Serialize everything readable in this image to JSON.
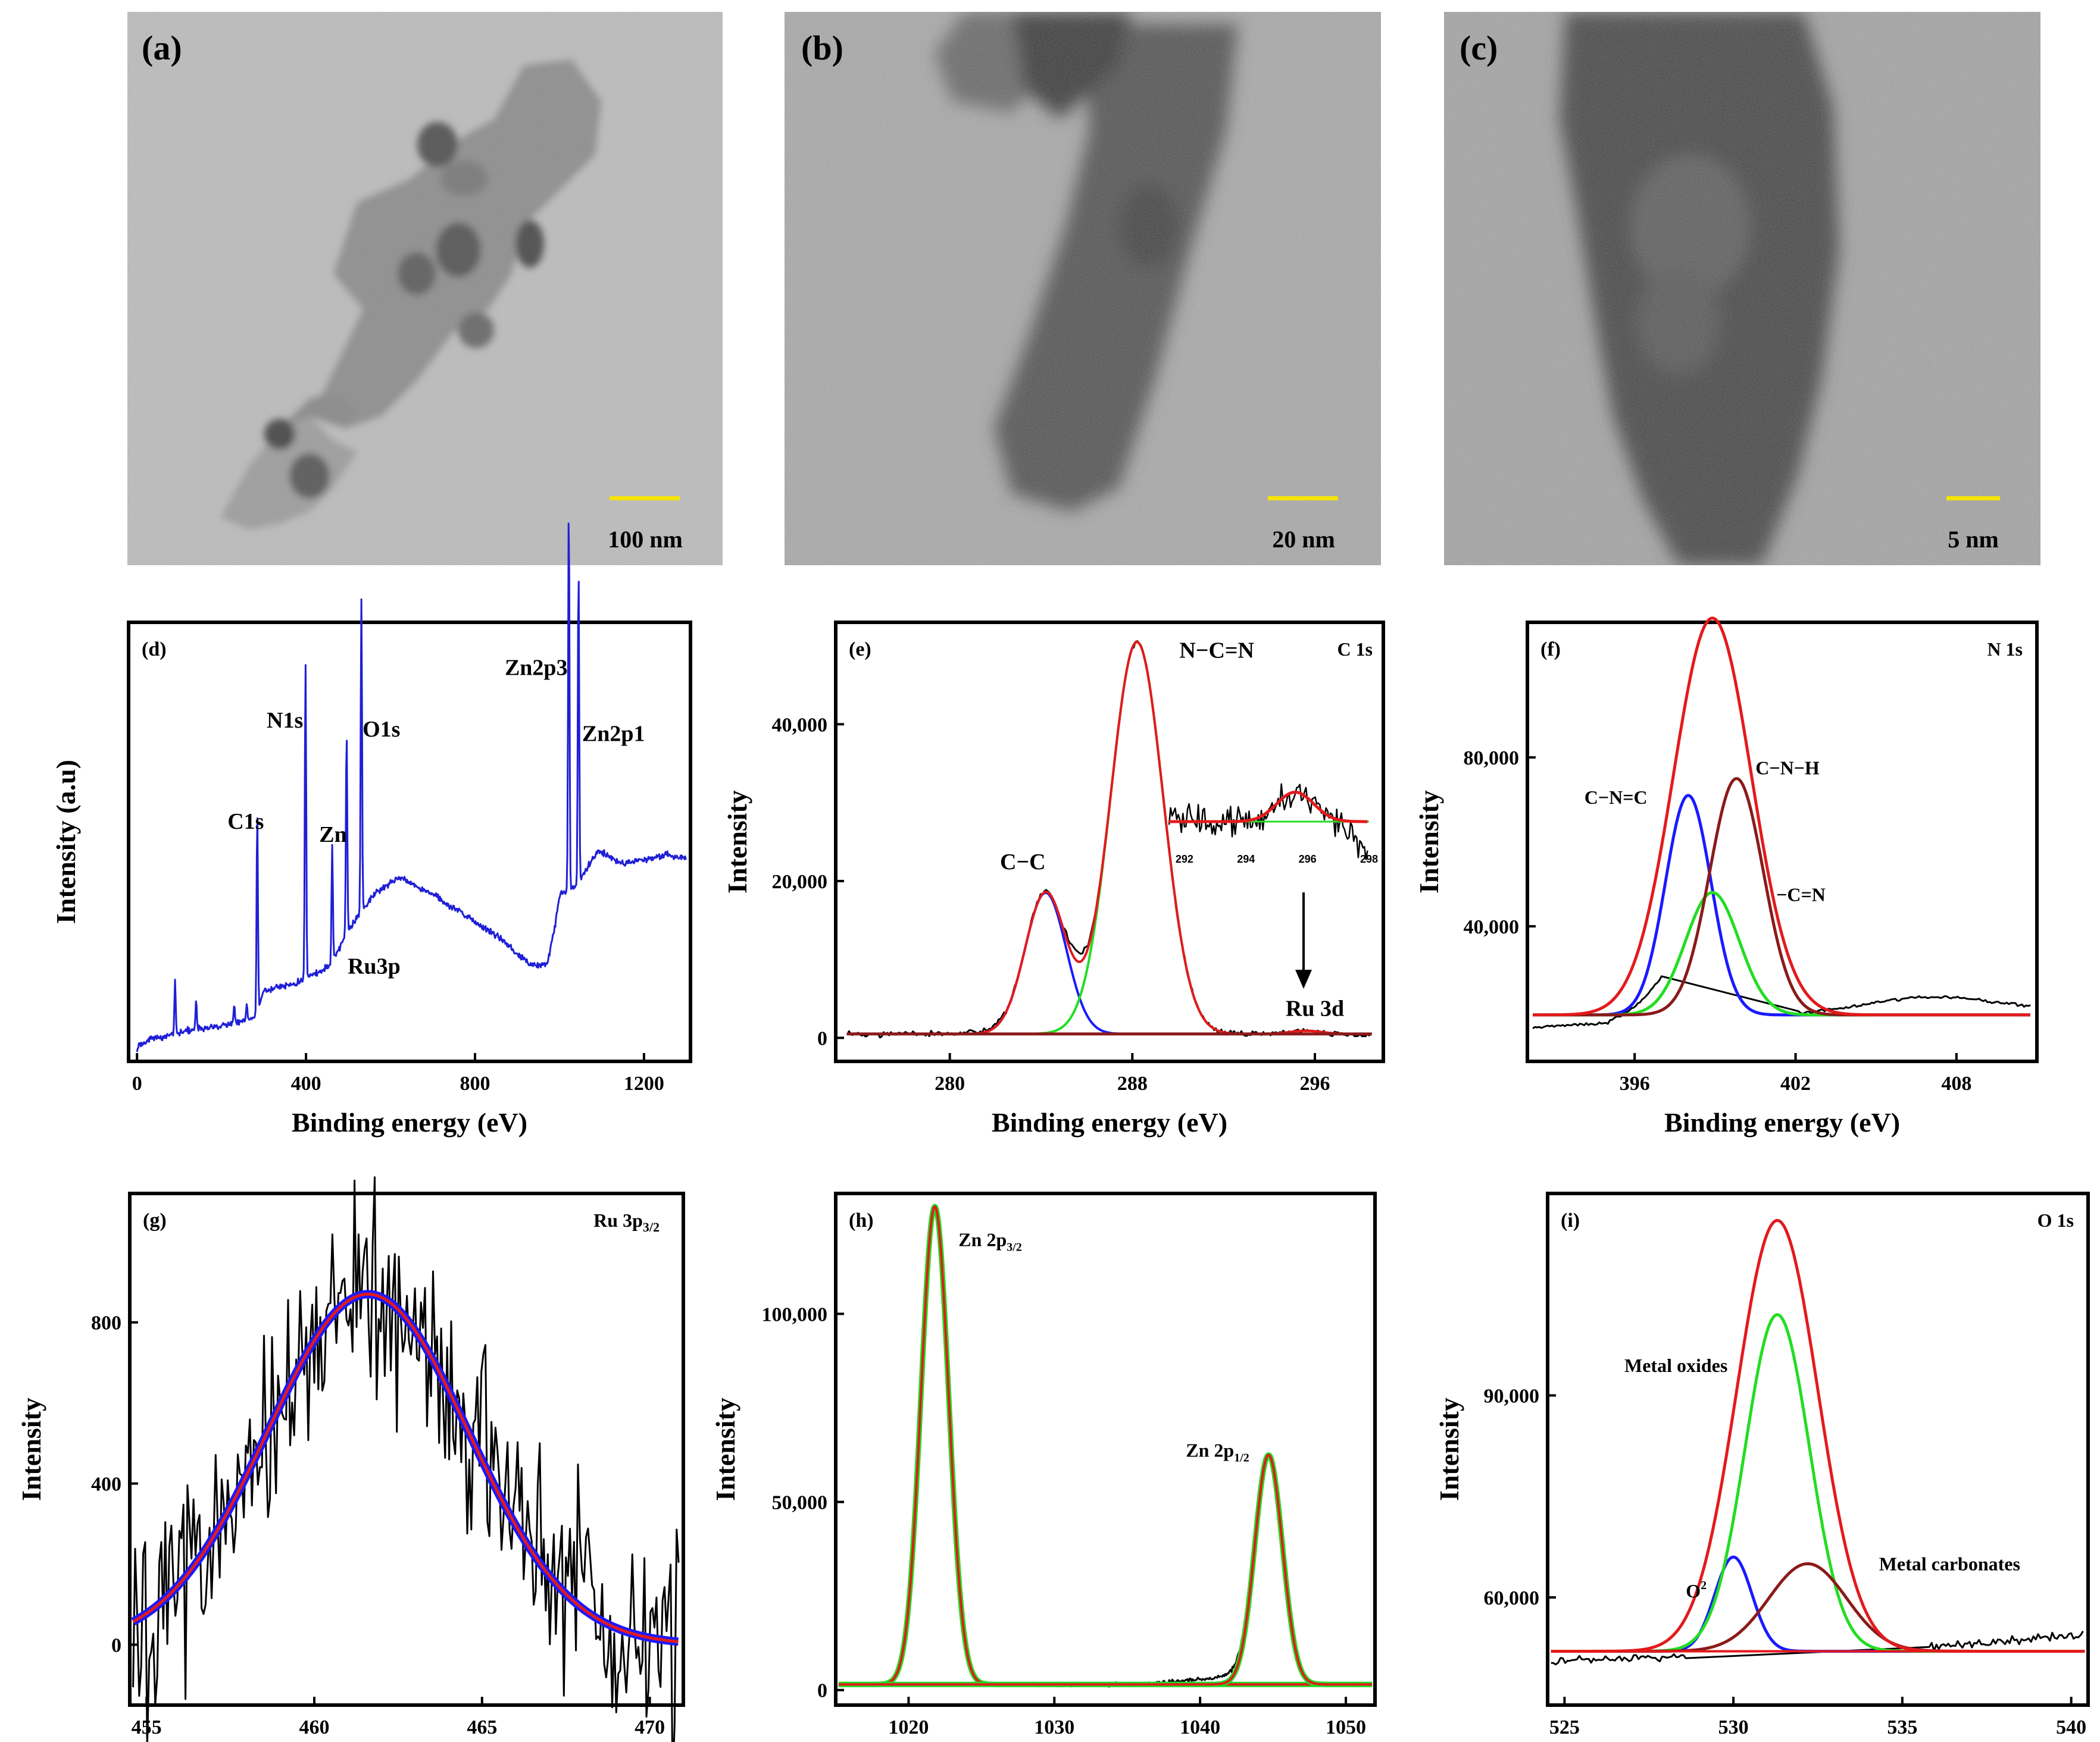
{
  "tem_panels": [
    {
      "label": "(a)",
      "scale_bar": "100 nm"
    },
    {
      "label": "(b)",
      "scale_bar": "20 nm"
    },
    {
      "label": "(c)",
      "scale_bar": "5 nm"
    }
  ],
  "colors": {
    "scale_bar": "#f5e400",
    "survey_line": "#1f1fd6",
    "data_black": "#000000",
    "fit_red": "#e31a1c",
    "fit_green": "#22dd22",
    "fit_blue": "#1a1aff",
    "fit_darkred": "#8b1a1a",
    "inset_red": "#e31a1c"
  },
  "chart_data": [
    {
      "label": "(d)",
      "type": "line",
      "subtype": "xps-survey",
      "xlabel": "Binding energy (eV)",
      "ylabel": "Intensity (a.u)",
      "xlim": [
        -20,
        1310
      ],
      "xticks": [
        0,
        400,
        800,
        1200
      ],
      "ylim": [
        0,
        100
      ],
      "yticks": [],
      "baseline": [
        [
          0,
          3
        ],
        [
          10,
          4
        ],
        [
          30,
          5
        ],
        [
          80,
          6
        ],
        [
          120,
          7
        ],
        [
          200,
          8
        ],
        [
          280,
          10
        ],
        [
          300,
          16
        ],
        [
          380,
          18
        ],
        [
          420,
          20
        ],
        [
          460,
          22
        ],
        [
          500,
          30
        ],
        [
          560,
          38
        ],
        [
          620,
          42
        ],
        [
          700,
          38
        ],
        [
          780,
          33
        ],
        [
          860,
          28
        ],
        [
          930,
          22
        ],
        [
          970,
          22
        ],
        [
          990,
          31
        ],
        [
          1000,
          38
        ],
        [
          1040,
          40
        ],
        [
          1090,
          48
        ],
        [
          1150,
          45
        ],
        [
          1200,
          46
        ],
        [
          1250,
          47
        ],
        [
          1300,
          46
        ]
      ],
      "peaks": [
        {
          "name": "C1s",
          "x": 284.6,
          "height": 45
        },
        {
          "name": "N1s",
          "x": 398.8,
          "height": 72
        },
        {
          "name": "Zn",
          "x": 496,
          "height": 46
        },
        {
          "name": "Ru3p",
          "x": 462,
          "height": 27
        },
        {
          "name": "O1s",
          "x": 531,
          "height": 71
        },
        {
          "name": "Zn2p3",
          "x": 1022,
          "height": 88
        },
        {
          "name": "Zn2p1",
          "x": 1045,
          "height": 72
        }
      ],
      "series": [
        {
          "color": "#1f1fd6"
        }
      ]
    },
    {
      "label": "(e)",
      "type": "line",
      "subtype": "xps-fit",
      "title": "C 1s",
      "xlabel": "Binding energy (eV)",
      "ylabel": "Intensity",
      "xlim": [
        275,
        299
      ],
      "xticks": [
        280,
        288,
        296
      ],
      "ylim": [
        -3000,
        53000
      ],
      "yticks": [
        0,
        20000,
        40000
      ],
      "ytick_labels": [
        "0",
        "20,000",
        "40,000"
      ],
      "baseline": 500,
      "components": [
        {
          "name": "C−C",
          "center": 284.2,
          "amplitude": 18000,
          "sigma": 0.9,
          "color": "#1a1aff"
        },
        {
          "name": "N−C=N",
          "center": 288.2,
          "amplitude": 50000,
          "sigma": 1.15,
          "color": "#22dd22"
        },
        {
          "name": "Ru 3d",
          "center": 295.6,
          "amplitude": 400,
          "sigma": 0.7,
          "color": "#e31a1c"
        }
      ],
      "envelope_color": "#e31a1c",
      "inset": {
        "xlim": [
          291.5,
          298
        ],
        "xticks": [
          292,
          294,
          296,
          298
        ],
        "peak_center": 295.6,
        "peak_height": 0.55,
        "peak_sigma": 0.6
      },
      "annotations": [
        "C−C",
        "N−C=N",
        "Ru 3d"
      ]
    },
    {
      "label": "(f)",
      "type": "line",
      "subtype": "xps-fit",
      "title": "N 1s",
      "xlabel": "Binding energy (eV)",
      "ylabel": "Intensity",
      "xlim": [
        392,
        411
      ],
      "xticks": [
        396,
        402,
        408
      ],
      "ylim": [
        8000,
        112000
      ],
      "yticks": [
        40000,
        80000
      ],
      "ytick_labels": [
        "40,000",
        "80,000"
      ],
      "baseline": 19000,
      "components": [
        {
          "name": "C−N=C",
          "center": 398.0,
          "amplitude": 52000,
          "sigma": 0.85,
          "color": "#1a1aff"
        },
        {
          "name": "−C=N",
          "center": 398.9,
          "amplitude": 29000,
          "sigma": 1.0,
          "color": "#22dd22"
        },
        {
          "name": "C−N−H",
          "center": 399.8,
          "amplitude": 56000,
          "sigma": 1.0,
          "color": "#8b1a1a"
        }
      ],
      "envelope_color": "#e31a1c",
      "envelope": {
        "center": 398.9,
        "amplitude": 94000,
        "sigma": 1.45
      },
      "annotations": [
        "C−N=C",
        "C−N−H",
        "−C=N"
      ]
    },
    {
      "label": "(g)",
      "type": "line",
      "subtype": "xps-fit",
      "title": "Ru 3p",
      "title_sub": "3/2",
      "xlabel": "Binding energy (eV)",
      "ylabel": "Intensity",
      "xlim": [
        454.5,
        471
      ],
      "xticks": [
        455,
        460,
        465,
        470
      ],
      "ylim": [
        -150,
        1120
      ],
      "yticks": [
        0,
        400,
        800
      ],
      "ytick_labels": [
        "0",
        "400",
        "800"
      ],
      "components": [
        {
          "name": "fit",
          "center": 461.6,
          "amplitude": 870,
          "sigma": 3.0,
          "color": "#1a1aff"
        }
      ],
      "envelope_color": "#e31a1c"
    },
    {
      "label": "(h)",
      "type": "line",
      "subtype": "xps-fit",
      "xlabel": "Binding energy (eV)",
      "ylabel": "Intensity",
      "xlim": [
        1015,
        1052
      ],
      "xticks": [
        1020,
        1030,
        1040,
        1050
      ],
      "ylim": [
        -4000,
        132000
      ],
      "yticks": [
        0,
        50000,
        100000
      ],
      "ytick_labels": [
        "0",
        "50,000",
        "100,000"
      ],
      "baseline": 1500,
      "components": [
        {
          "name": "Zn 2p",
          "sub": "3/2",
          "center": 1021.8,
          "amplitude": 127000,
          "sigma": 0.95,
          "color": "#e31a1c"
        },
        {
          "name": "Zn 2p",
          "sub": "1/2",
          "center": 1044.7,
          "amplitude": 61000,
          "sigma": 0.95,
          "color": "#e31a1c"
        }
      ],
      "envelope_color": "#22dd22"
    },
    {
      "label": "(i)",
      "type": "line",
      "subtype": "xps-fit",
      "title": "O 1s",
      "xlabel": "Binding energy (eV)",
      "ylabel": "Intensity",
      "xlim": [
        524.5,
        540.5
      ],
      "xticks": [
        525,
        530,
        535,
        540
      ],
      "ylim": [
        44000,
        120000
      ],
      "yticks": [
        60000,
        90000
      ],
      "ytick_labels": [
        "60,000",
        "90,000"
      ],
      "baseline": 52000,
      "components": [
        {
          "name": "O",
          "sup": "2",
          "center": 530.0,
          "amplitude": 14000,
          "sigma": 0.55,
          "color": "#1a1aff"
        },
        {
          "name": "Metal oxides",
          "center": 531.3,
          "amplitude": 50000,
          "sigma": 0.95,
          "color": "#22dd22"
        },
        {
          "name": "Metal carbonates",
          "center": 532.2,
          "amplitude": 13000,
          "sigma": 1.15,
          "color": "#8b1a1a"
        }
      ],
      "envelope_color": "#e31a1c",
      "envelope": {
        "center": 531.3,
        "amplitude": 64000,
        "sigma": 1.2
      },
      "annotations": [
        "Metal oxides",
        "O",
        "Metal carbonates"
      ]
    }
  ]
}
